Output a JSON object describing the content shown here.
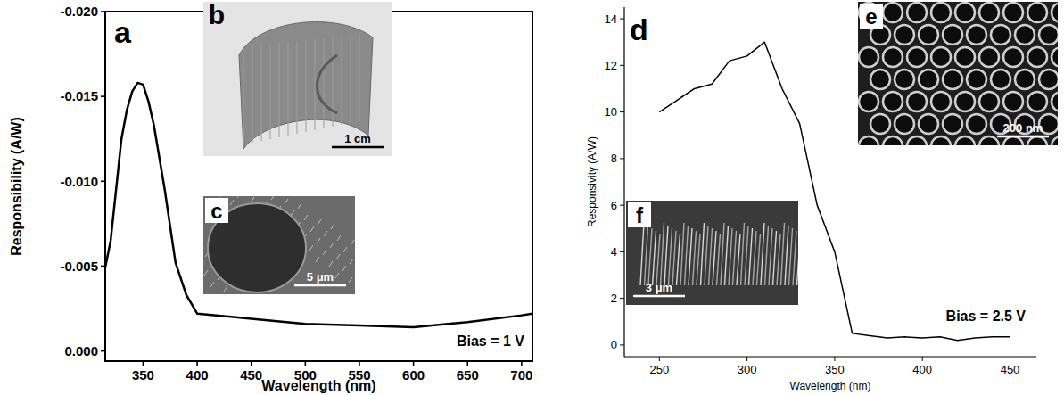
{
  "chart_data": [
    {
      "type": "line",
      "panel": "a",
      "y_label": "Responsibility (A/W)",
      "x_label": "Wavelength (nm)",
      "annotations": [
        "Bias = 1 V"
      ],
      "insets": [
        {
          "label": "b",
          "scale_bar": "1 cm"
        },
        {
          "label": "c",
          "scale_bar": "5 μm"
        }
      ],
      "x": [
        315,
        320,
        325,
        330,
        335,
        340,
        345,
        350,
        355,
        360,
        370,
        380,
        390,
        400,
        450,
        500,
        550,
        600,
        650,
        700,
        710
      ],
      "values": [
        -0.0049,
        -0.0065,
        -0.0095,
        -0.0125,
        -0.0142,
        -0.0153,
        -0.0158,
        -0.0157,
        -0.0147,
        -0.0133,
        -0.0095,
        -0.0052,
        -0.0033,
        -0.0022,
        -0.0019,
        -0.0016,
        -0.0015,
        -0.0014,
        -0.0017,
        -0.0021,
        -0.0022
      ],
      "color": "#000000",
      "xlim": [
        315,
        710
      ],
      "ylim": [
        0.0006,
        -0.02
      ],
      "xticks": [
        350,
        400,
        450,
        500,
        550,
        600,
        650,
        700
      ],
      "yticks": [
        {
          "value": -0.02,
          "label": "-0.020"
        },
        {
          "value": -0.015,
          "label": "-0.015"
        },
        {
          "value": -0.01,
          "label": "-0.010"
        },
        {
          "value": -0.005,
          "label": "-0.005"
        },
        {
          "value": 0,
          "label": "0.000"
        }
      ]
    },
    {
      "type": "line",
      "panel": "d",
      "y_label": "Responsivity (A/W)",
      "x_label": "Wavelength (nm)",
      "annotations": [
        "Bias = 2.5 V"
      ],
      "insets": [
        {
          "label": "e",
          "scale_bar": "200 nm"
        },
        {
          "label": "f",
          "scale_bar": "3 μm"
        }
      ],
      "x": [
        250,
        260,
        270,
        280,
        290,
        300,
        310,
        320,
        330,
        340,
        350,
        360,
        370,
        380,
        390,
        400,
        410,
        420,
        430,
        440,
        450
      ],
      "values": [
        10,
        10.5,
        11,
        11.2,
        12.2,
        12.4,
        13,
        11,
        9.5,
        6,
        4,
        0.5,
        0.4,
        0.3,
        0.35,
        0.3,
        0.35,
        0.2,
        0.3,
        0.35,
        0.35
      ],
      "color": "#000000",
      "xlim": [
        230,
        465
      ],
      "ylim": [
        -0.5,
        14.5
      ],
      "xticks": [
        250,
        300,
        350,
        400,
        450
      ],
      "yticks": [
        0,
        2,
        4,
        6,
        8,
        10,
        12,
        14
      ]
    }
  ]
}
